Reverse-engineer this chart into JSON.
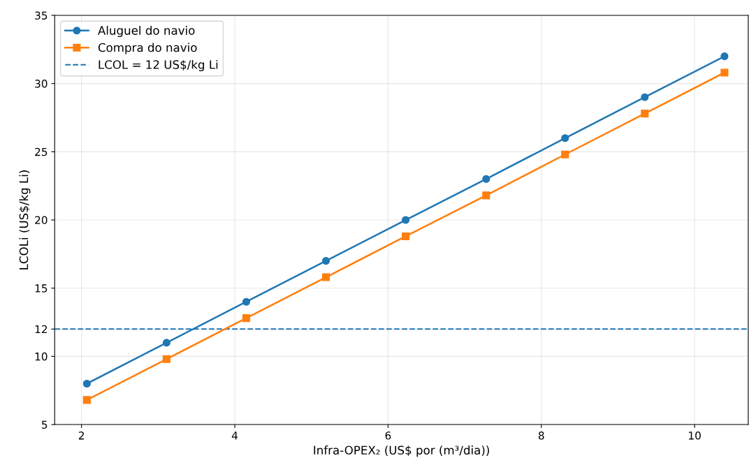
{
  "chart_data": {
    "type": "line",
    "xlabel": "Infra-OPEX₂ (US$ por (m³/dia))",
    "ylabel": "LCOLi (US$/kg Li)",
    "x": [
      2.07,
      3.11,
      4.15,
      5.19,
      6.23,
      7.28,
      8.31,
      9.35,
      10.39
    ],
    "series": [
      {
        "name": "Aluguel do navio",
        "color": "#1f77b4",
        "marker": "circle",
        "values": [
          8,
          11,
          14,
          17,
          20,
          23,
          26,
          29,
          32
        ]
      },
      {
        "name": "Compra do navio",
        "color": "#ff7f0e",
        "marker": "square",
        "values": [
          6.8,
          9.8,
          12.8,
          15.8,
          18.8,
          21.8,
          24.8,
          27.8,
          30.8
        ]
      }
    ],
    "ref_lines": [
      {
        "axis": "y",
        "value": 12,
        "label": "LCOL = 12 US$/kg Li",
        "color": "#1f77b4",
        "line_style": "dashed"
      }
    ],
    "xlim": [
      1.65,
      10.7
    ],
    "ylim": [
      5,
      35
    ],
    "xticks": [
      2,
      4,
      6,
      8,
      10
    ],
    "yticks": [
      5,
      10,
      12,
      15,
      20,
      25,
      30,
      35
    ],
    "grid": true,
    "legend": "top left",
    "line_style": "solid"
  }
}
